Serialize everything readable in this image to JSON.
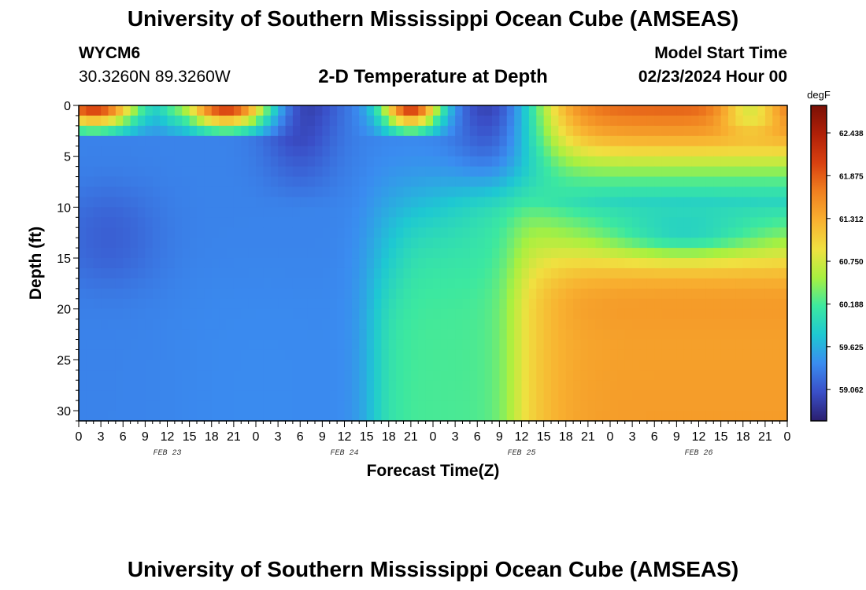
{
  "header": {
    "title": "University of Southern Mississippi Ocean Cube (AMSEAS)",
    "station_id": "WYCM6",
    "coords": "30.3260N  89.3260W",
    "plot_title": "2-D Temperature at Depth",
    "model_start_label": "Model Start Time",
    "model_start_value": "02/23/2024 Hour 00"
  },
  "footer": {
    "title": "University of Southern Mississippi Ocean Cube (AMSEAS)"
  },
  "chart_data": {
    "type": "heatmap",
    "title": "2-D Temperature at Depth",
    "xlabel": "Forecast Time(Z)",
    "ylabel": "Depth (ft)",
    "x_range_hours": [
      0,
      96
    ],
    "ylim": [
      0,
      31
    ],
    "y_inverted": true,
    "x_ticks": [
      "0",
      "3",
      "6",
      "9",
      "12",
      "15",
      "18",
      "21",
      "0",
      "3",
      "6",
      "9",
      "12",
      "15",
      "18",
      "21",
      "0",
      "3",
      "6",
      "9",
      "12",
      "15",
      "18",
      "21",
      "0",
      "3",
      "6",
      "9",
      "12",
      "15",
      "18",
      "21",
      "0"
    ],
    "y_ticks": [
      0,
      5,
      10,
      15,
      20,
      25,
      30
    ],
    "date_labels": [
      {
        "label": "FEB 23",
        "hour": 12
      },
      {
        "label": "FEB 24",
        "hour": 36
      },
      {
        "label": "FEB 25",
        "hour": 60
      },
      {
        "label": "FEB 26",
        "hour": 84
      }
    ],
    "colorbar": {
      "unit": "degF",
      "vmin": 58.65,
      "vmax": 62.8,
      "ticks": [
        "62.438",
        "61.875",
        "61.312",
        "60.750",
        "60.188",
        "59.625",
        "59.062"
      ],
      "colors": [
        "#2a1e6e",
        "#3a4fc8",
        "#3a8cf0",
        "#1ec8d2",
        "#3ce8a0",
        "#a8f040",
        "#f0e040",
        "#f8b030",
        "#f08020",
        "#d84010",
        "#b02008",
        "#7a1006"
      ]
    },
    "grid": false
  }
}
